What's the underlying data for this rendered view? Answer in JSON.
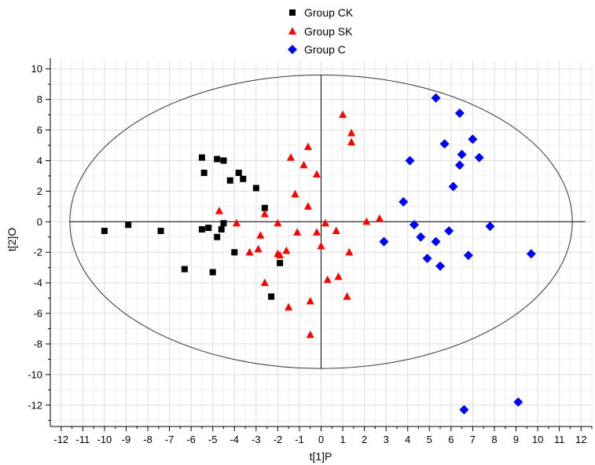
{
  "chart_data": {
    "type": "scatter",
    "xlabel": "t[1]P",
    "ylabel": "t[2]O",
    "xlim": [
      -12.5,
      12.5
    ],
    "ylim": [
      -13.4,
      10.5
    ],
    "x_ticks": [
      -12,
      -11,
      -10,
      -9,
      -8,
      -7,
      -6,
      -5,
      -4,
      -3,
      -2,
      -1,
      0,
      1,
      2,
      3,
      4,
      5,
      6,
      7,
      8,
      9,
      10,
      11,
      12
    ],
    "y_ticks": [
      -12,
      -10,
      -8,
      -6,
      -4,
      -2,
      0,
      2,
      4,
      6,
      8,
      10
    ],
    "grid": true,
    "legend_position": "top-center",
    "ellipse": {
      "cx": 0,
      "cy": 0,
      "rx": 11.6,
      "ry": 9.6
    },
    "series": [
      {
        "name": "Group CK",
        "marker": "square",
        "color": "#000000",
        "points": [
          [
            -10.0,
            -0.6
          ],
          [
            -8.9,
            -0.2
          ],
          [
            -7.4,
            -0.6
          ],
          [
            -6.3,
            -3.1
          ],
          [
            -5.5,
            4.2
          ],
          [
            -5.4,
            3.2
          ],
          [
            -5.5,
            -0.5
          ],
          [
            -5.2,
            -0.4
          ],
          [
            -5.0,
            -3.3
          ],
          [
            -4.8,
            4.1
          ],
          [
            -4.8,
            -1.0
          ],
          [
            -4.5,
            4.0
          ],
          [
            -4.6,
            -0.5
          ],
          [
            -4.5,
            -0.1
          ],
          [
            -4.2,
            2.7
          ],
          [
            -4.0,
            -2.0
          ],
          [
            -3.8,
            3.2
          ],
          [
            -3.6,
            2.8
          ],
          [
            -3.0,
            2.2
          ],
          [
            -2.6,
            0.9
          ],
          [
            -2.3,
            -4.9
          ],
          [
            -1.9,
            -2.7
          ]
        ]
      },
      {
        "name": "Group SK",
        "marker": "triangle",
        "color": "#ff0000",
        "points": [
          [
            -4.7,
            0.7
          ],
          [
            -3.9,
            -0.1
          ],
          [
            -3.3,
            -2.0
          ],
          [
            -2.9,
            -1.8
          ],
          [
            -2.8,
            -0.9
          ],
          [
            -2.6,
            0.5
          ],
          [
            -2.6,
            -4.0
          ],
          [
            -2.0,
            -0.1
          ],
          [
            -2.0,
            -2.1
          ],
          [
            -1.9,
            -2.2
          ],
          [
            -1.6,
            -1.9
          ],
          [
            -1.5,
            -5.6
          ],
          [
            -1.4,
            4.2
          ],
          [
            -1.2,
            1.8
          ],
          [
            -1.1,
            -0.7
          ],
          [
            -0.8,
            3.7
          ],
          [
            -0.6,
            4.9
          ],
          [
            -0.6,
            1.0
          ],
          [
            -0.5,
            -5.2
          ],
          [
            -0.5,
            -7.4
          ],
          [
            -0.2,
            3.1
          ],
          [
            -0.2,
            -0.7
          ],
          [
            0.0,
            -1.6
          ],
          [
            0.2,
            -0.1
          ],
          [
            0.3,
            -3.8
          ],
          [
            0.7,
            -0.6
          ],
          [
            0.8,
            -3.6
          ],
          [
            1.0,
            7.0
          ],
          [
            1.2,
            -4.9
          ],
          [
            1.3,
            -2.0
          ],
          [
            1.4,
            5.8
          ],
          [
            1.4,
            5.2
          ],
          [
            2.1,
            0.0
          ],
          [
            2.7,
            0.2
          ]
        ]
      },
      {
        "name": "Group C",
        "marker": "diamond",
        "color": "#0000ff",
        "points": [
          [
            2.9,
            -1.3
          ],
          [
            3.8,
            1.3
          ],
          [
            4.1,
            4.0
          ],
          [
            4.3,
            -0.2
          ],
          [
            4.6,
            -1.0
          ],
          [
            4.9,
            -2.4
          ],
          [
            5.3,
            8.1
          ],
          [
            5.3,
            -1.3
          ],
          [
            5.5,
            -2.9
          ],
          [
            5.7,
            5.1
          ],
          [
            5.9,
            -0.6
          ],
          [
            6.1,
            2.3
          ],
          [
            6.4,
            3.7
          ],
          [
            6.4,
            7.1
          ],
          [
            6.5,
            4.4
          ],
          [
            6.6,
            -12.3
          ],
          [
            6.8,
            -2.2
          ],
          [
            7.0,
            5.4
          ],
          [
            7.3,
            4.2
          ],
          [
            7.8,
            -0.3
          ],
          [
            9.1,
            -11.8
          ],
          [
            9.7,
            -2.1
          ]
        ]
      }
    ]
  }
}
